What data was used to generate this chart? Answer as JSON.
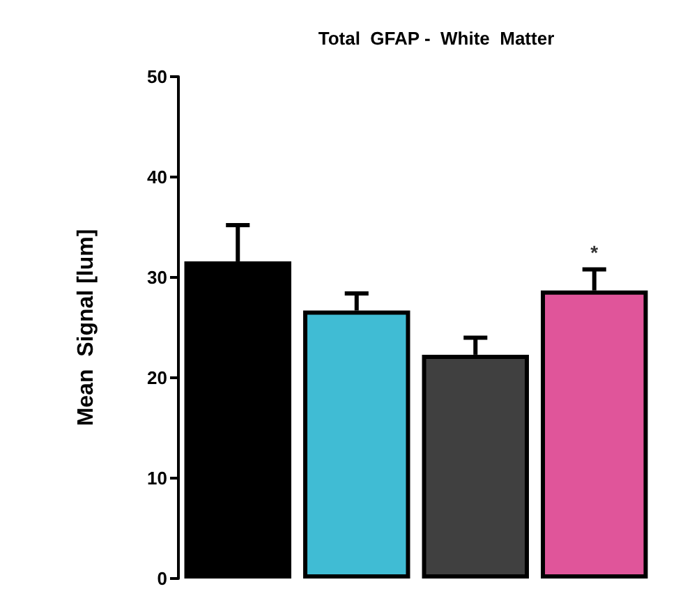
{
  "chart_data": {
    "type": "bar",
    "title": "Total  GFAP -  White  Matter",
    "ylabel": "Mean  Signal [lum]",
    "categories": [
      null,
      null,
      null,
      null
    ],
    "values": [
      31.6,
      26.7,
      22.3,
      28.7
    ],
    "colors": [
      "#000000",
      "#40bcd4",
      "#404040",
      "#e0559a"
    ],
    "errors": [
      [
        31.6,
        35.2
      ],
      [
        26.7,
        28.4
      ],
      [
        22.3,
        24.0
      ],
      [
        28.7,
        30.8
      ]
    ],
    "value_labels": [
      null,
      null,
      null,
      "*"
    ],
    "ylim": [
      0,
      50
    ],
    "yticks": [
      0,
      10,
      20,
      30,
      40,
      50
    ],
    "grid": false
  }
}
